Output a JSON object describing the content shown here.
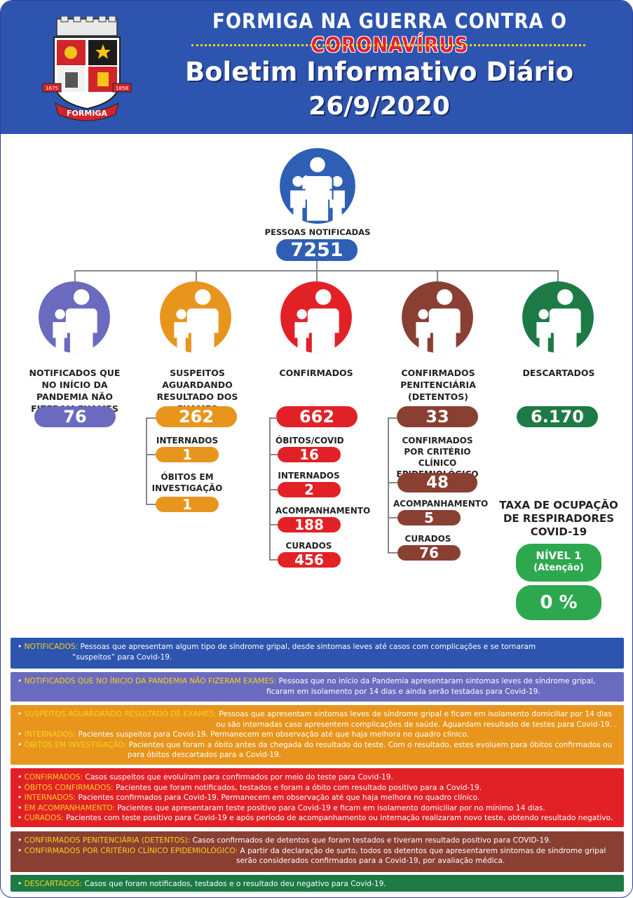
{
  "header": {
    "title_part1": "FORMIGA NA GUERRA CONTRA O ",
    "title_part2": "CORONAVÍRUS",
    "subtitle": "Boletim Informativo Diário",
    "date": "26/9/2020",
    "crest_text": "FORMIGA",
    "crest_year_left": "1675",
    "crest_year_right": "1858"
  },
  "colors": {
    "blue_header": "#2d55b0",
    "blue": "#2f5fb4",
    "purple": "#6a6bbf",
    "orange": "#e8951d",
    "red": "#e22127",
    "brown": "#8a3f33",
    "green": "#1d7a45",
    "light_green": "#2ea84f"
  },
  "notified": {
    "label": "PESSOAS NOTIFICADAS",
    "value": "7251"
  },
  "categories": [
    {
      "label": "NOTIFICADOS QUE NO INÍCIO DA PANDEMIA NÃO FIZERAM EXAMES",
      "value": "76"
    },
    {
      "label": "SUSPEITOS AGUARDANDO RESULTADO DOS EXAMES",
      "value": "262"
    },
    {
      "label": "CONFIRMADOS",
      "value": "662"
    },
    {
      "label": "CONFIRMADOS PENITENCIÁRIA (DETENTOS)",
      "value": "33"
    },
    {
      "label": "DESCARTADOS",
      "value": "6.170"
    }
  ],
  "suspeitos": [
    {
      "label": "INTERNADOS",
      "value": "1"
    },
    {
      "label": "ÓBITOS EM INVESTIGAÇÃO",
      "value": "1"
    }
  ],
  "confirmados": [
    {
      "label": "ÓBITOS/COVID",
      "value": "16"
    },
    {
      "label": "INTERNADOS",
      "value": "2"
    },
    {
      "label": "ACOMPANHAMENTO",
      "value": "188"
    },
    {
      "label": "CURADOS",
      "value": "456"
    }
  ],
  "penitenciaria": [
    {
      "label": "CONFIRMADOS POR CRITÉRIO CLÍNICO EPIDEMIOLÓGICO",
      "value": "48"
    },
    {
      "label": "ACOMPANHAMENTO",
      "value": "5"
    },
    {
      "label": "CURADOS",
      "value": "76"
    }
  ],
  "respiradores": {
    "title": "TAXA DE OCUPAÇÃO DE RESPIRADORES COVID-19",
    "level": "NÍVEL 1",
    "level_note": "(Atenção)",
    "value": "0 %"
  },
  "legend": {
    "notificados": {
      "term": "NOTIFICADOS:",
      "text": "Pessoas que apresentam algum tipo de síndrome gripal, desde sintomas leves até casos com complicações e se tornaram",
      "text2": "“suspeitos” para Covid-19."
    },
    "nao_fizeram": {
      "term": "NOTIFICADOS QUE NO ÍNICIO DA PANDEMIA NÃO FIZERAM EXAMES:",
      "text": "Pessoas que no início da Pandemia apresentaram sintomas leves de síndrome gripal,",
      "text2": "ficaram em isolamento por 14 dias e ainda serão testadas para Covid-19."
    },
    "suspeitos": {
      "term": "SUSPEITOS AGUARDANDO RESULTADO DE EXAMES:",
      "text": "Pessoas que apresentam sintomas leves de síndrome gripal e ficam em isolamento domiciliar por 14 dias",
      "text2": "ou são internadas caso apresentem complicações de saúde. Aguardam resultado de testes para Covid-19. ."
    },
    "internados_s": {
      "term": "INTERNADOS:",
      "text": "Pacientes suspeitos para Covid-19. Permanecem em observação até que haja melhora no quadro clínico."
    },
    "obitos_inv": {
      "term": "ÓBITOS EM INVESTIGAÇÃO:",
      "text": "Pacientes que foram a óbito antes da chegada do resultado do teste. Com o resultado, estes evoluem para óbitos confirmados ou",
      "text2": "para óbitos descartados para a Covid-19."
    },
    "confirmados": {
      "term": "CONFIRMADOS:",
      "text": "Casos suspeitos que evoluíram para confirmados por meio do teste para Covid-19."
    },
    "obitos_conf": {
      "term": "ÓBITOS CONFIRMADOS:",
      "text": "Pacientes que foram notificados, testados e foram a óbito com resultado positivo para a Covid-19."
    },
    "internados_c": {
      "term": "INTERNADOS:",
      "text": "Pacientes confirmados para Covid-19. Permanecem em observação até que haja melhora no quadro clínico."
    },
    "acompanhamento": {
      "term": "EM ACOMPANHAMENTO:",
      "text": "Pacientes que apresentaram teste positivo para Covid-19 e ficam em isolamento domiciliar por no mínimo 14 dias."
    },
    "curados": {
      "term": "CURADOS:",
      "text": "Pacientes com teste positivo para Covid-19 e após período de acompanhamento ou internação realizaram novo teste, obtendo resultado negativo."
    },
    "penit": {
      "term": "CONFIRMADOS PENITENCIÁRIA (DETENTOS):",
      "text": "Casos confirmados de detentos que foram testados e tiveram resultado positivo para COVID-19."
    },
    "criterio": {
      "term": "CONFIRMADOS POR CRITÉRIO CLÍNICO EPIDEMIOLÓGICO:",
      "text": "A partir da declaração de surto, todos os detentos que apresentarem sintomas de síndrome gripal",
      "text2": "serão considerados confirmados para a Covid-19, por avaliação médica."
    },
    "descartados": {
      "term": "DESCARTADOS:",
      "text": "Casos que foram notificados, testados e o resultado deu negativo para Covid-19."
    }
  }
}
